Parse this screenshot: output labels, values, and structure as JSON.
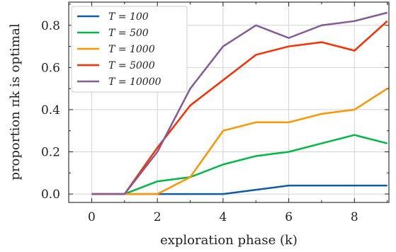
{
  "chart_data": {
    "type": "line",
    "xlabel": "exploration phase (k)",
    "ylabel": "proportion πk is optimal",
    "xlim": [
      -0.7,
      9.05
    ],
    "ylim": [
      -0.04,
      0.91
    ],
    "xticks": [
      0,
      2,
      4,
      6,
      8
    ],
    "yticks": [
      0.0,
      0.2,
      0.4,
      0.6,
      0.8
    ],
    "ytick_labels": [
      "0.0",
      "0.2",
      "0.4",
      "0.6",
      "0.8"
    ],
    "grid": true,
    "legend_position": "top-left",
    "x": [
      0,
      1,
      2,
      3,
      4,
      5,
      6,
      7,
      8,
      9
    ],
    "series": [
      {
        "name": "T = 100",
        "color": "#0c5da5",
        "values": [
          0,
          0,
          0,
          0,
          0,
          0.02,
          0.04,
          0.04,
          0.04,
          0.04
        ]
      },
      {
        "name": "T = 500",
        "color": "#00b945",
        "values": [
          0,
          0,
          0.06,
          0.08,
          0.14,
          0.18,
          0.2,
          0.24,
          0.28,
          0.24
        ]
      },
      {
        "name": "T = 1000",
        "color": "#ff9500",
        "values": [
          0,
          0,
          0,
          0.08,
          0.3,
          0.34,
          0.34,
          0.38,
          0.4,
          0.5
        ]
      },
      {
        "name": "T = 5000",
        "color": "#ff2c00",
        "values": [
          0,
          0,
          0.22,
          0.42,
          0.54,
          0.66,
          0.7,
          0.72,
          0.68,
          0.82
        ]
      },
      {
        "name": "T = 10000",
        "color": "#845b97",
        "values": [
          0,
          0,
          0.2,
          0.5,
          0.7,
          0.8,
          0.74,
          0.8,
          0.82,
          0.86
        ]
      }
    ]
  }
}
